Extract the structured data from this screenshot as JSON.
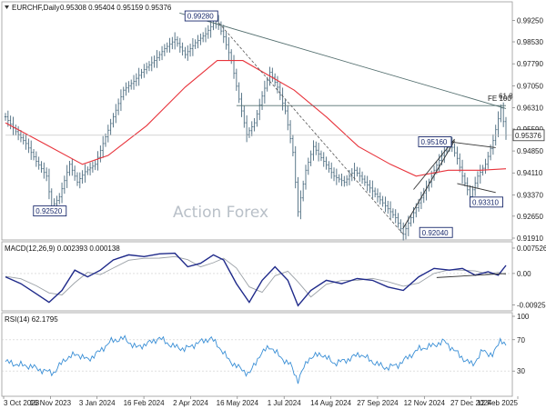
{
  "chart_data": {
    "type": "candlestick",
    "title": "EURCHF,Daily",
    "ohlc_readout": "0.95308 0.95404 0.95159 0.95376",
    "last_price": "0.95376",
    "watermark": "Action Forex",
    "price_ticks": [
      "0.99250",
      "0.98530",
      "0.97790",
      "0.97050",
      "0.96310",
      "0.95590",
      "0.94850",
      "0.94110",
      "0.93370",
      "0.92650",
      "0.91910"
    ],
    "price_range": [
      0.9191,
      0.9945
    ],
    "x_ticks": [
      "3 Oct 2023",
      "16 Nov 2023",
      "3 Jan 2024",
      "16 Feb 2024",
      "2 Apr 2024",
      "16 May 2024",
      "1 Jul 2024",
      "14 Aug 2024",
      "27 Sep 2024",
      "12 Nov 2024",
      "27 Dec 2024",
      "12 Feb 2025"
    ],
    "price_series": [
      {
        "d": 0,
        "v": 0.96
      },
      {
        "d": 8,
        "v": 0.955
      },
      {
        "d": 16,
        "v": 0.951
      },
      {
        "d": 24,
        "v": 0.945
      },
      {
        "d": 32,
        "v": 0.94
      },
      {
        "d": 36,
        "v": 0.9295
      },
      {
        "d": 42,
        "v": 0.933
      },
      {
        "d": 50,
        "v": 0.944
      },
      {
        "d": 56,
        "v": 0.938
      },
      {
        "d": 62,
        "v": 0.9415
      },
      {
        "d": 70,
        "v": 0.944
      },
      {
        "d": 76,
        "v": 0.951
      },
      {
        "d": 84,
        "v": 0.96
      },
      {
        "d": 92,
        "v": 0.969
      },
      {
        "d": 100,
        "v": 0.972
      },
      {
        "d": 108,
        "v": 0.976
      },
      {
        "d": 116,
        "v": 0.979
      },
      {
        "d": 124,
        "v": 0.983
      },
      {
        "d": 132,
        "v": 0.986
      },
      {
        "d": 140,
        "v": 0.981
      },
      {
        "d": 148,
        "v": 0.985
      },
      {
        "d": 156,
        "v": 0.988
      },
      {
        "d": 164,
        "v": 0.9928
      },
      {
        "d": 170,
        "v": 0.987
      },
      {
        "d": 176,
        "v": 0.979
      },
      {
        "d": 182,
        "v": 0.966
      },
      {
        "d": 188,
        "v": 0.954
      },
      {
        "d": 194,
        "v": 0.958
      },
      {
        "d": 200,
        "v": 0.967
      },
      {
        "d": 206,
        "v": 0.975
      },
      {
        "d": 212,
        "v": 0.97
      },
      {
        "d": 218,
        "v": 0.962
      },
      {
        "d": 224,
        "v": 0.948
      },
      {
        "d": 228,
        "v": 0.928
      },
      {
        "d": 234,
        "v": 0.942
      },
      {
        "d": 240,
        "v": 0.95
      },
      {
        "d": 248,
        "v": 0.945
      },
      {
        "d": 256,
        "v": 0.94
      },
      {
        "d": 264,
        "v": 0.938
      },
      {
        "d": 272,
        "v": 0.942
      },
      {
        "d": 280,
        "v": 0.938
      },
      {
        "d": 288,
        "v": 0.934
      },
      {
        "d": 296,
        "v": 0.93
      },
      {
        "d": 304,
        "v": 0.926
      },
      {
        "d": 310,
        "v": 0.9204
      },
      {
        "d": 316,
        "v": 0.926
      },
      {
        "d": 322,
        "v": 0.931
      },
      {
        "d": 328,
        "v": 0.936
      },
      {
        "d": 334,
        "v": 0.942
      },
      {
        "d": 340,
        "v": 0.947
      },
      {
        "d": 346,
        "v": 0.9516
      },
      {
        "d": 352,
        "v": 0.946
      },
      {
        "d": 356,
        "v": 0.94
      },
      {
        "d": 362,
        "v": 0.9331
      },
      {
        "d": 368,
        "v": 0.94
      },
      {
        "d": 374,
        "v": 0.944
      },
      {
        "d": 380,
        "v": 0.952
      },
      {
        "d": 386,
        "v": 0.963
      },
      {
        "d": 390,
        "v": 0.9538
      }
    ],
    "ma_series": [
      {
        "d": 0,
        "v": 0.958
      },
      {
        "d": 30,
        "v": 0.951
      },
      {
        "d": 60,
        "v": 0.944
      },
      {
        "d": 80,
        "v": 0.947
      },
      {
        "d": 110,
        "v": 0.957
      },
      {
        "d": 140,
        "v": 0.97
      },
      {
        "d": 165,
        "v": 0.979
      },
      {
        "d": 185,
        "v": 0.979
      },
      {
        "d": 205,
        "v": 0.974
      },
      {
        "d": 225,
        "v": 0.969
      },
      {
        "d": 250,
        "v": 0.96
      },
      {
        "d": 275,
        "v": 0.95
      },
      {
        "d": 300,
        "v": 0.944
      },
      {
        "d": 320,
        "v": 0.94
      },
      {
        "d": 345,
        "v": 0.942
      },
      {
        "d": 370,
        "v": 0.942
      },
      {
        "d": 390,
        "v": 0.9425
      }
    ],
    "annotations": [
      {
        "label": "0.99280",
        "d": 164,
        "v": 0.9928
      },
      {
        "label": "0.92520",
        "d": 36,
        "v": 0.9252
      },
      {
        "label": "0.92040",
        "d": 310,
        "v": 0.9204
      },
      {
        "label": "0.95160",
        "d": 346,
        "v": 0.9516
      },
      {
        "label": "0.93310",
        "d": 362,
        "v": 0.9331
      }
    ],
    "fib_label": "61.8",
    "fe_label": "FE 100",
    "macd": {
      "label": "MACD(12,26,9) 0.002393 0.000138",
      "ticks": [
        "0.007526",
        "0.00",
        "-0.009252"
      ],
      "range": [
        -0.0105,
        0.0083
      ],
      "series": [
        {
          "d": 0,
          "v": -0.001
        },
        {
          "d": 12,
          "v": -0.003
        },
        {
          "d": 24,
          "v": -0.006
        },
        {
          "d": 34,
          "v": -0.0085
        },
        {
          "d": 44,
          "v": -0.005
        },
        {
          "d": 54,
          "v": 0.001
        },
        {
          "d": 64,
          "v": -0.001
        },
        {
          "d": 74,
          "v": 0.001
        },
        {
          "d": 84,
          "v": 0.004
        },
        {
          "d": 96,
          "v": 0.0055
        },
        {
          "d": 108,
          "v": 0.005
        },
        {
          "d": 120,
          "v": 0.0058
        },
        {
          "d": 132,
          "v": 0.006
        },
        {
          "d": 142,
          "v": 0.002
        },
        {
          "d": 152,
          "v": 0.003
        },
        {
          "d": 162,
          "v": 0.0055
        },
        {
          "d": 170,
          "v": 0.004
        },
        {
          "d": 180,
          "v": -0.003
        },
        {
          "d": 190,
          "v": -0.0085
        },
        {
          "d": 200,
          "v": -0.002
        },
        {
          "d": 210,
          "v": 0.002
        },
        {
          "d": 220,
          "v": -0.002
        },
        {
          "d": 228,
          "v": -0.0095
        },
        {
          "d": 238,
          "v": -0.005
        },
        {
          "d": 250,
          "v": -0.002
        },
        {
          "d": 262,
          "v": -0.003
        },
        {
          "d": 274,
          "v": -0.0015
        },
        {
          "d": 286,
          "v": -0.002
        },
        {
          "d": 298,
          "v": -0.004
        },
        {
          "d": 310,
          "v": -0.005
        },
        {
          "d": 322,
          "v": -0.001
        },
        {
          "d": 334,
          "v": 0.0015
        },
        {
          "d": 346,
          "v": 0.001
        },
        {
          "d": 356,
          "v": 0.0015
        },
        {
          "d": 366,
          "v": -0.0005
        },
        {
          "d": 376,
          "v": 0.0005
        },
        {
          "d": 384,
          "v": -0.0005
        },
        {
          "d": 390,
          "v": 0.0024
        }
      ]
    },
    "rsi": {
      "label": "RSI(14) 62.1795",
      "ticks": [
        "100",
        "70",
        "30",
        "0"
      ],
      "series": [
        {
          "d": 0,
          "v": 42
        },
        {
          "d": 10,
          "v": 38
        },
        {
          "d": 20,
          "v": 36
        },
        {
          "d": 30,
          "v": 30
        },
        {
          "d": 38,
          "v": 28
        },
        {
          "d": 46,
          "v": 45
        },
        {
          "d": 56,
          "v": 52
        },
        {
          "d": 64,
          "v": 44
        },
        {
          "d": 74,
          "v": 56
        },
        {
          "d": 82,
          "v": 68
        },
        {
          "d": 92,
          "v": 72
        },
        {
          "d": 102,
          "v": 60
        },
        {
          "d": 112,
          "v": 66
        },
        {
          "d": 120,
          "v": 72
        },
        {
          "d": 130,
          "v": 62
        },
        {
          "d": 140,
          "v": 58
        },
        {
          "d": 150,
          "v": 66
        },
        {
          "d": 160,
          "v": 72
        },
        {
          "d": 166,
          "v": 62
        },
        {
          "d": 174,
          "v": 44
        },
        {
          "d": 182,
          "v": 34
        },
        {
          "d": 190,
          "v": 26
        },
        {
          "d": 198,
          "v": 50
        },
        {
          "d": 206,
          "v": 62
        },
        {
          "d": 214,
          "v": 48
        },
        {
          "d": 222,
          "v": 38
        },
        {
          "d": 228,
          "v": 18
        },
        {
          "d": 236,
          "v": 46
        },
        {
          "d": 246,
          "v": 52
        },
        {
          "d": 256,
          "v": 40
        },
        {
          "d": 266,
          "v": 44
        },
        {
          "d": 276,
          "v": 52
        },
        {
          "d": 286,
          "v": 42
        },
        {
          "d": 296,
          "v": 34
        },
        {
          "d": 306,
          "v": 38
        },
        {
          "d": 314,
          "v": 48
        },
        {
          "d": 322,
          "v": 58
        },
        {
          "d": 332,
          "v": 62
        },
        {
          "d": 342,
          "v": 68
        },
        {
          "d": 350,
          "v": 56
        },
        {
          "d": 358,
          "v": 44
        },
        {
          "d": 364,
          "v": 38
        },
        {
          "d": 372,
          "v": 56
        },
        {
          "d": 380,
          "v": 50
        },
        {
          "d": 386,
          "v": 72
        },
        {
          "d": 390,
          "v": 62
        }
      ]
    },
    "colors": {
      "price": "#4a6a7e",
      "ma": "#e8333b",
      "trend": "#557070",
      "macd": "#1f2a8a",
      "signal": "#9aa0a6",
      "rsi": "#3a8fd6",
      "label_box": "#1a2a6c"
    }
  }
}
